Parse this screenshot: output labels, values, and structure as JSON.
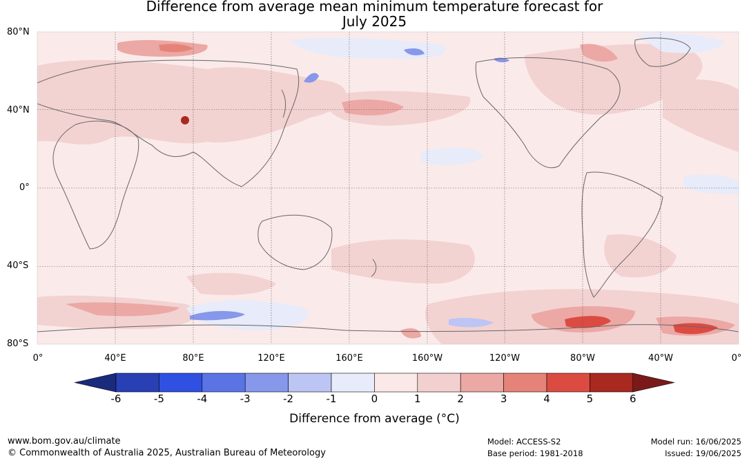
{
  "title": {
    "line1": "Difference from average mean minimum temperature forecast for",
    "line2": "July 2025"
  },
  "map": {
    "latitude_labels": [
      "80°N",
      "40°N",
      "0°",
      "40°S",
      "80°S"
    ],
    "longitude_labels": [
      "0°",
      "40°E",
      "80°E",
      "120°E",
      "160°E",
      "160°W",
      "120°W",
      "80°W",
      "40°W",
      "0°"
    ],
    "colors": {
      "ocean_base": "#fbeaea",
      "land_outline": "#666666",
      "grid": "#555555"
    }
  },
  "colorbar": {
    "label": "Difference from average (°C)",
    "ticks": [
      "-6",
      "-5",
      "-4",
      "-3",
      "-2",
      "-1",
      "0",
      "1",
      "2",
      "3",
      "4",
      "5",
      "6"
    ],
    "colors": [
      "#1a2a7c",
      "#2840b4",
      "#2f50e0",
      "#5a74e6",
      "#8797ea",
      "#bcc5f3",
      "#e7ebfa",
      "#fbe9e9",
      "#f3d0d0",
      "#eba8a4",
      "#e68379",
      "#dc4b42",
      "#a9281f",
      "#7a1a18"
    ]
  },
  "footer": {
    "website": "www.bom.gov.au/climate",
    "copyright": "© Commonwealth of Australia 2025, Australian Bureau of Meteorology",
    "model": "Model: ACCESS-S2",
    "base_period": "Base period: 1981-2018",
    "model_run": "Model run: 16/06/2025",
    "issued": "Issued: 19/06/2025"
  }
}
